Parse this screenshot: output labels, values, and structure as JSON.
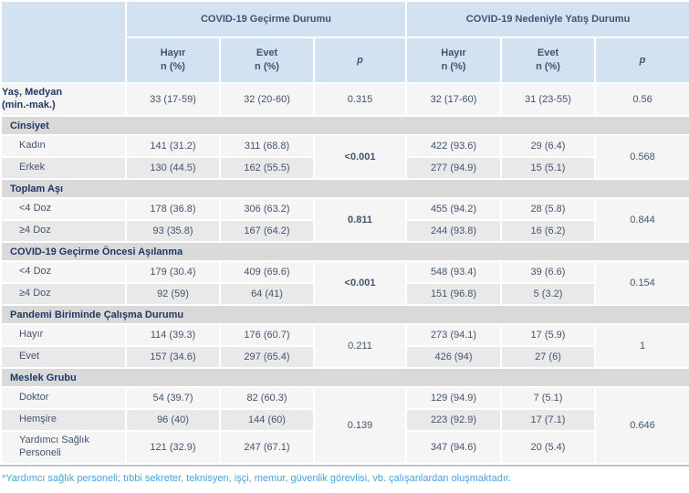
{
  "header": {
    "group1": "COVID-19 Geçirme Durumu",
    "group2": "COVID-19 Nedeniyle Yatış Durumu",
    "col_no": "Hayır",
    "col_yes": "Evet",
    "col_n": "n (%)",
    "col_p": "p"
  },
  "age_row": {
    "label1": "Yaş, Medyan",
    "label2": "(min.-mak.)",
    "g1_no": "33 (17-59)",
    "g1_yes": "32 (20-60)",
    "g1_p": "0.315",
    "g2_no": "32 (17-60)",
    "g2_yes": "31 (23-55)",
    "g2_p": "0.56"
  },
  "sections": [
    {
      "title": "Cinsiyet",
      "g1_p": "<0.001",
      "g2_p": "0.568",
      "rows": [
        {
          "label": "Kadın",
          "g1_no": "141 (31.2)",
          "g1_yes": "311 (68.8)",
          "g2_no": "422 (93.6)",
          "g2_yes": "29 (6.4)"
        },
        {
          "label": "Erkek",
          "g1_no": "130 (44.5)",
          "g1_yes": "162 (55.5)",
          "g2_no": "277 (94.9)",
          "g2_yes": "15 (5.1)"
        }
      ]
    },
    {
      "title": "Toplam Aşı",
      "g1_p": "0.811",
      "g2_p": "0.844",
      "rows": [
        {
          "label": "<4 Doz",
          "g1_no": "178 (36.8)",
          "g1_yes": "306 (63.2)",
          "g2_no": "455 (94.2)",
          "g2_yes": "28 (5.8)"
        },
        {
          "label": "≥4 Doz",
          "g1_no": "93 (35.8)",
          "g1_yes": "167 (64.2)",
          "g2_no": "244 (93.8)",
          "g2_yes": "16 (6.2)"
        }
      ]
    },
    {
      "title": "COVID-19 Geçirme Öncesi Aşılanma",
      "g1_p": "<0.001",
      "g2_p": "0.154",
      "rows": [
        {
          "label": "<4 Doz",
          "g1_no": "179 (30.4)",
          "g1_yes": "409 (69.6)",
          "g2_no": "548 (93.4)",
          "g2_yes": "39 (6.6)"
        },
        {
          "label": "≥4 Doz",
          "g1_no": "92 (59)",
          "g1_yes": "64 (41)",
          "g2_no": "151 (96.8)",
          "g2_yes": "5 (3.2)"
        }
      ]
    },
    {
      "title": "Pandemi Biriminde Çalışma Durumu",
      "g1_p": "0.211",
      "g2_p": "1",
      "rows": [
        {
          "label": "Hayır",
          "g1_no": "114 (39.3)",
          "g1_yes": "176 (60.7)",
          "g2_no": "273 (94.1)",
          "g2_yes": "17 (5.9)"
        },
        {
          "label": "Evet",
          "g1_no": "157 (34.6)",
          "g1_yes": "297 (65.4)",
          "g2_no": "426 (94)",
          "g2_yes": "27 (6)"
        }
      ]
    },
    {
      "title": "Meslek Grubu",
      "g1_p": "0.139",
      "g2_p": "0.646",
      "rows": [
        {
          "label": "Doktor",
          "g1_no": "54 (39.7)",
          "g1_yes": "82 (60.3)",
          "g2_no": "129 (94.9)",
          "g2_yes": "7 (5.1)"
        },
        {
          "label": "Hemşire",
          "g1_no": "96 (40)",
          "g1_yes": "144 (60)",
          "g2_no": "223 (92.9)",
          "g2_yes": "17 (7.1)"
        },
        {
          "label": "Yardımcı Sağlık Personeli",
          "g1_no": "121 (32.9)",
          "g1_yes": "247 (67.1)",
          "g2_no": "347 (94.6)",
          "g2_yes": "20 (5.4)"
        }
      ]
    }
  ],
  "footnote": "*Yardımcı sağlık personeli; tıbbi sekreter, teknisyen, işçi, memur, güvenlik görevlisi, vb. çalışanlardan oluşmaktadır.",
  "colors": {
    "header_blue": "#d2e2f0",
    "section_gray": "#d9d9d9",
    "row_light": "#f5f5f5",
    "row_alt": "#e9e9e9",
    "navy_text": "#1f3864",
    "value_text": "#425471",
    "footnote_blue": "#4aa3da"
  }
}
